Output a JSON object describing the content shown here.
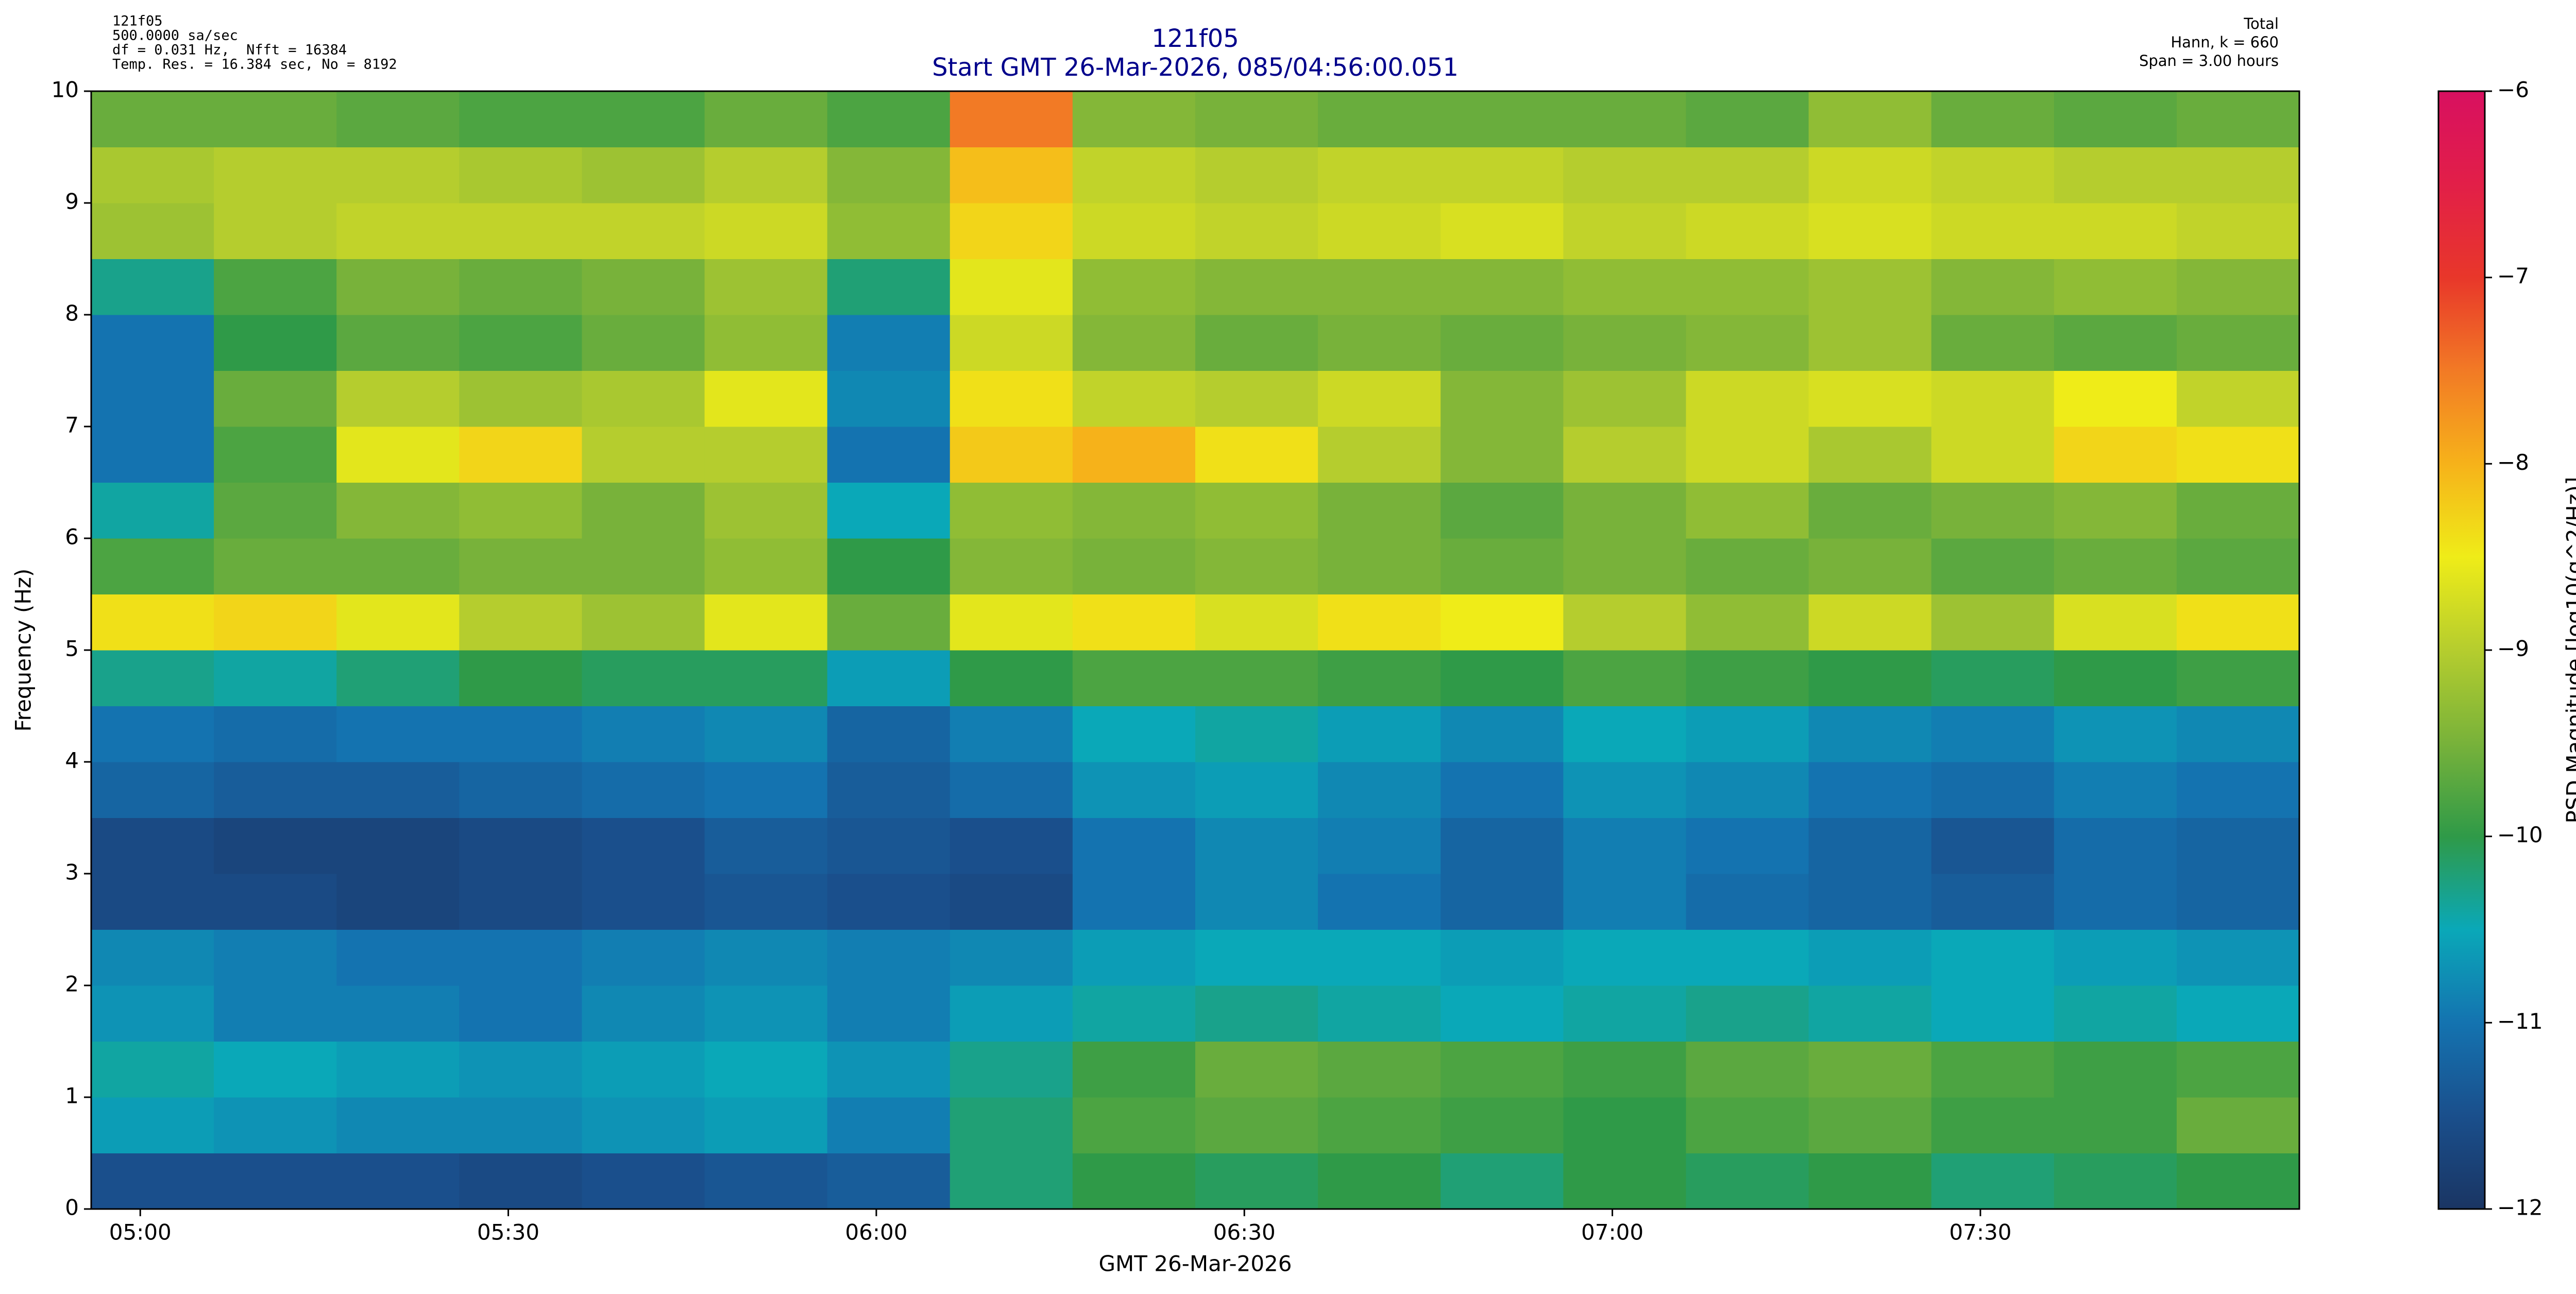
{
  "chart_data": {
    "type": "heatmap",
    "title": "121f05",
    "subtitle": "Start GMT 26-Mar-2026, 085/04:56:00.051",
    "info_left": [
      "121f05",
      "500.0000 sa/sec",
      "df = 0.031 Hz,  Nfft = 16384",
      "Temp. Res. = 16.384 sec, No = 8192"
    ],
    "info_right": [
      "Total",
      "Hann, k = 660",
      "Span = 3.00 hours"
    ],
    "xlabel": "GMT 26-Mar-2026",
    "ylabel": "Frequency (Hz)",
    "colorbar_label": "PSD Magnitude [log10(g^2/Hz)]",
    "xlim": [
      296,
      476
    ],
    "xticks": [
      {
        "value": 300,
        "label": "05:00"
      },
      {
        "value": 330,
        "label": "05:30"
      },
      {
        "value": 360,
        "label": "06:00"
      },
      {
        "value": 390,
        "label": "06:30"
      },
      {
        "value": 420,
        "label": "07:00"
      },
      {
        "value": 450,
        "label": "07:30"
      }
    ],
    "ylim": [
      0,
      10
    ],
    "yticks": [
      0,
      1,
      2,
      3,
      4,
      5,
      6,
      7,
      8,
      9,
      10
    ],
    "zlim": [
      -12,
      -6
    ],
    "zticks": [
      {
        "value": -12,
        "label": "−12"
      },
      {
        "value": -11,
        "label": "−11"
      },
      {
        "value": -10,
        "label": "−10"
      },
      {
        "value": -9,
        "label": "−9"
      },
      {
        "value": -8,
        "label": "−8"
      },
      {
        "value": -7,
        "label": "−7"
      },
      {
        "value": -6,
        "label": "−6"
      }
    ],
    "colormap": [
      "#1a3563",
      "#1a4f8c",
      "#1473b0",
      "#0aa8b8",
      "#2f9a48",
      "#78b23a",
      "#b5cd2e",
      "#efec18",
      "#f6b21a",
      "#f27a25",
      "#e8372a",
      "#e21f48",
      "#d81060"
    ],
    "grid": false,
    "x": [
      301,
      311,
      321,
      331,
      341,
      351,
      361,
      371,
      381,
      391,
      401,
      411,
      421,
      431,
      441,
      451,
      461,
      471
    ],
    "y": [
      0.25,
      0.75,
      1.25,
      1.75,
      2.25,
      2.75,
      3.25,
      3.75,
      4.25,
      4.75,
      5.25,
      5.75,
      6.25,
      6.75,
      7.25,
      7.75,
      8.25,
      8.75,
      9.25,
      9.75
    ],
    "values": [
      [
        -11.5,
        -11.5,
        -11.5,
        -11.6,
        -11.5,
        -11.4,
        -11.3,
        -10.2,
        -10.0,
        -10.1,
        -10.0,
        -10.2,
        -10.0,
        -10.1,
        -10.0,
        -10.2,
        -10.1,
        -10.0
      ],
      [
        -10.6,
        -10.7,
        -10.8,
        -10.8,
        -10.7,
        -10.6,
        -10.9,
        -10.2,
        -9.8,
        -9.7,
        -9.8,
        -9.9,
        -10.0,
        -9.8,
        -9.7,
        -9.9,
        -9.9,
        -9.6
      ],
      [
        -10.4,
        -10.5,
        -10.6,
        -10.7,
        -10.6,
        -10.5,
        -10.7,
        -10.3,
        -9.9,
        -9.6,
        -9.7,
        -9.8,
        -9.9,
        -9.7,
        -9.6,
        -9.8,
        -9.9,
        -9.8
      ],
      [
        -10.7,
        -10.9,
        -10.9,
        -11.0,
        -10.8,
        -10.7,
        -10.9,
        -10.6,
        -10.4,
        -10.3,
        -10.4,
        -10.5,
        -10.4,
        -10.3,
        -10.4,
        -10.5,
        -10.4,
        -10.5
      ],
      [
        -10.8,
        -10.9,
        -11.0,
        -11.0,
        -10.9,
        -10.8,
        -10.9,
        -10.8,
        -10.6,
        -10.5,
        -10.5,
        -10.6,
        -10.5,
        -10.5,
        -10.6,
        -10.5,
        -10.6,
        -10.7
      ],
      [
        -11.6,
        -11.6,
        -11.7,
        -11.6,
        -11.5,
        -11.4,
        -11.5,
        -11.6,
        -11.0,
        -10.8,
        -11.0,
        -11.2,
        -10.9,
        -11.1,
        -11.2,
        -11.3,
        -11.1,
        -11.2
      ],
      [
        -11.6,
        -11.7,
        -11.7,
        -11.6,
        -11.5,
        -11.3,
        -11.4,
        -11.5,
        -11.0,
        -10.8,
        -10.9,
        -11.2,
        -10.9,
        -11.0,
        -11.2,
        -11.4,
        -11.1,
        -11.2
      ],
      [
        -11.2,
        -11.3,
        -11.3,
        -11.2,
        -11.1,
        -11.0,
        -11.3,
        -11.1,
        -10.7,
        -10.6,
        -10.8,
        -11.0,
        -10.7,
        -10.8,
        -11.0,
        -11.1,
        -10.9,
        -11.0
      ],
      [
        -11.0,
        -11.1,
        -11.0,
        -11.0,
        -10.9,
        -10.8,
        -11.2,
        -10.9,
        -10.5,
        -10.4,
        -10.6,
        -10.8,
        -10.5,
        -10.6,
        -10.8,
        -10.9,
        -10.7,
        -10.8
      ],
      [
        -10.3,
        -10.4,
        -10.2,
        -10.0,
        -10.1,
        -10.1,
        -10.6,
        -10.0,
        -9.8,
        -9.8,
        -9.9,
        -10.0,
        -9.8,
        -9.9,
        -10.0,
        -10.1,
        -10.0,
        -9.9
      ],
      [
        -8.4,
        -8.3,
        -8.6,
        -9.0,
        -9.2,
        -8.6,
        -9.6,
        -8.6,
        -8.4,
        -8.7,
        -8.4,
        -8.5,
        -9.0,
        -9.3,
        -8.8,
        -9.2,
        -8.7,
        -8.4
      ],
      [
        -9.8,
        -9.6,
        -9.6,
        -9.5,
        -9.5,
        -9.3,
        -10.0,
        -9.4,
        -9.5,
        -9.4,
        -9.5,
        -9.6,
        -9.5,
        -9.6,
        -9.5,
        -9.7,
        -9.6,
        -9.7
      ],
      [
        -10.4,
        -9.7,
        -9.4,
        -9.3,
        -9.5,
        -9.2,
        -10.5,
        -9.3,
        -9.4,
        -9.3,
        -9.5,
        -9.7,
        -9.5,
        -9.3,
        -9.6,
        -9.5,
        -9.4,
        -9.6
      ],
      [
        -11.0,
        -9.8,
        -8.6,
        -8.3,
        -9.0,
        -9.0,
        -11.0,
        -8.2,
        -8.0,
        -8.4,
        -9.0,
        -9.4,
        -9.0,
        -8.8,
        -9.1,
        -8.8,
        -8.3,
        -8.4
      ],
      [
        -11.0,
        -9.6,
        -9.0,
        -9.2,
        -9.1,
        -8.6,
        -10.8,
        -8.4,
        -8.9,
        -9.0,
        -8.8,
        -9.4,
        -9.2,
        -8.8,
        -8.7,
        -8.8,
        -8.5,
        -8.9
      ],
      [
        -11.0,
        -10.0,
        -9.7,
        -9.8,
        -9.6,
        -9.3,
        -10.9,
        -8.8,
        -9.4,
        -9.6,
        -9.5,
        -9.6,
        -9.5,
        -9.4,
        -9.2,
        -9.6,
        -9.7,
        -9.6
      ],
      [
        -10.3,
        -9.8,
        -9.5,
        -9.6,
        -9.5,
        -9.2,
        -10.2,
        -8.6,
        -9.3,
        -9.4,
        -9.4,
        -9.4,
        -9.3,
        -9.3,
        -9.2,
        -9.4,
        -9.3,
        -9.4
      ],
      [
        -9.2,
        -9.0,
        -8.9,
        -8.9,
        -8.9,
        -8.8,
        -9.3,
        -8.3,
        -8.8,
        -8.9,
        -8.8,
        -8.7,
        -8.9,
        -8.8,
        -8.7,
        -8.8,
        -8.8,
        -8.9
      ],
      [
        -9.1,
        -9.0,
        -9.0,
        -9.1,
        -9.2,
        -9.0,
        -9.4,
        -8.1,
        -8.9,
        -9.0,
        -8.9,
        -8.9,
        -9.0,
        -9.0,
        -8.8,
        -8.9,
        -9.0,
        -9.0
      ],
      [
        -9.6,
        -9.6,
        -9.7,
        -9.8,
        -9.8,
        -9.6,
        -9.8,
        -7.5,
        -9.4,
        -9.5,
        -9.6,
        -9.6,
        -9.6,
        -9.7,
        -9.3,
        -9.6,
        -9.7,
        -9.6
      ]
    ]
  }
}
